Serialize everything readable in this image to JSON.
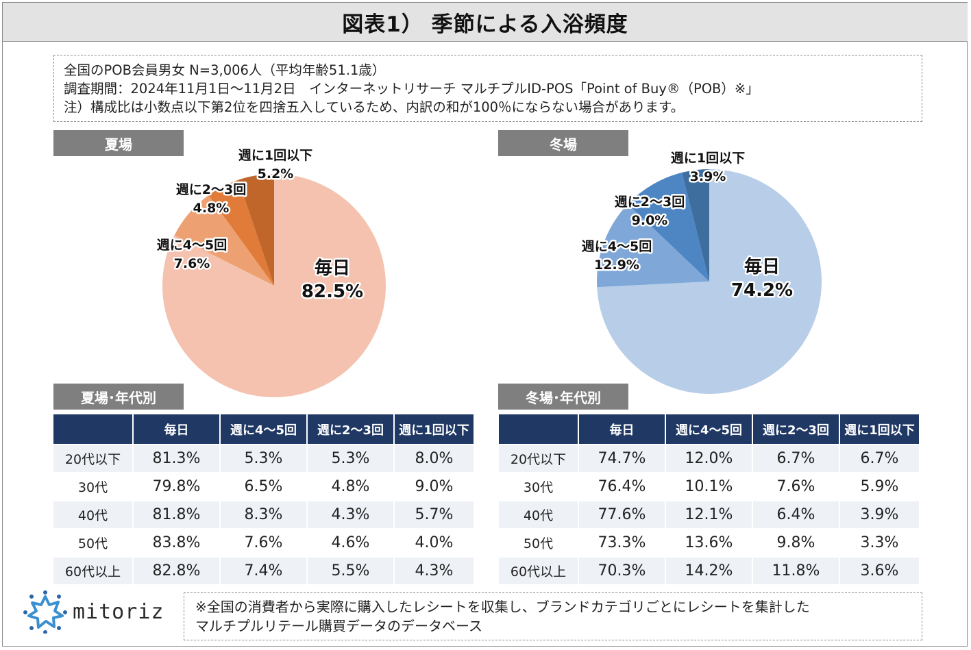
{
  "title": "図表1） 季節による入浴頻度",
  "notes": [
    "全国のPOB会員男女 N=3,006人（平均年齢51.1歳）",
    "調査期間：2024年11月1日〜11月2日　インターネットリサーチ マルチプルID-POS「Point of Buy®（POB）※」",
    "注）構成比は小数点以下第2位を四捨五入しているため、内訳の和が100％にならない場合があります。"
  ],
  "colors": {
    "summer": [
      "#f4c2ae",
      "#eda071",
      "#e07b39",
      "#c0662b"
    ],
    "winter": [
      "#b7cde8",
      "#7fa8d9",
      "#4e86c4",
      "#3e6e9e"
    ],
    "header": "#1f3864",
    "section_label": "#7f7f7f"
  },
  "chart_data": [
    {
      "type": "pie",
      "title": "夏場",
      "slices": [
        {
          "label": "毎日",
          "value": 82.5,
          "text": "82.5%"
        },
        {
          "label": "週に4〜5回",
          "value": 7.6,
          "text": "7.6%"
        },
        {
          "label": "週に2〜3回",
          "value": 4.8,
          "text": "4.8%"
        },
        {
          "label": "週に1回以下",
          "value": 5.2,
          "text": "5.2%"
        }
      ]
    },
    {
      "type": "pie",
      "title": "冬場",
      "slices": [
        {
          "label": "毎日",
          "value": 74.2,
          "text": "74.2%"
        },
        {
          "label": "週に4〜5回",
          "value": 12.9,
          "text": "12.9%"
        },
        {
          "label": "週に2〜3回",
          "value": 9.0,
          "text": "9.0%"
        },
        {
          "label": "週に1回以下",
          "value": 3.9,
          "text": "3.9%"
        }
      ]
    },
    {
      "type": "table",
      "title": "夏場･年代別",
      "columns": [
        "",
        "毎日",
        "週に4〜5回",
        "週に2〜3回",
        "週に1回以下"
      ],
      "rows": [
        [
          "20代以下",
          "81.3%",
          "5.3%",
          "5.3%",
          "8.0%"
        ],
        [
          "30代",
          "79.8%",
          "6.5%",
          "4.8%",
          "9.0%"
        ],
        [
          "40代",
          "81.8%",
          "8.3%",
          "4.3%",
          "5.7%"
        ],
        [
          "50代",
          "83.8%",
          "7.6%",
          "4.6%",
          "4.0%"
        ],
        [
          "60代以上",
          "82.8%",
          "7.4%",
          "5.5%",
          "4.3%"
        ]
      ]
    },
    {
      "type": "table",
      "title": "冬場･年代別",
      "columns": [
        "",
        "毎日",
        "週に4〜5回",
        "週に2〜3回",
        "週に1回以下"
      ],
      "rows": [
        [
          "20代以下",
          "74.7%",
          "12.0%",
          "6.7%",
          "6.7%"
        ],
        [
          "30代",
          "76.4%",
          "10.1%",
          "7.6%",
          "5.9%"
        ],
        [
          "40代",
          "77.6%",
          "12.1%",
          "6.4%",
          "3.9%"
        ],
        [
          "50代",
          "73.3%",
          "13.6%",
          "9.8%",
          "3.3%"
        ],
        [
          "60代以上",
          "70.3%",
          "14.2%",
          "11.8%",
          "3.6%"
        ]
      ]
    }
  ],
  "logo": {
    "text": "mitoriz"
  },
  "footnote": [
    "※全国の消費者から実際に購入したレシートを収集し、ブランドカテゴリごとにレシートを集計した",
    "マルチプルリテール購買データのデータベース"
  ]
}
